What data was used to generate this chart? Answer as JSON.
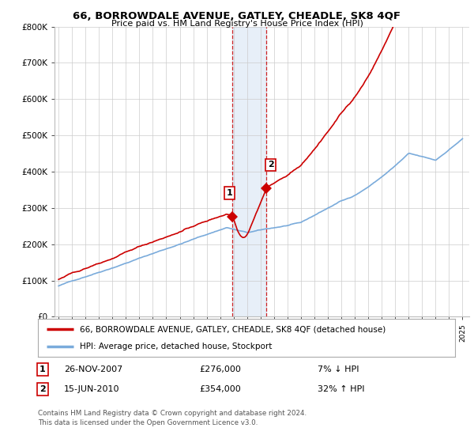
{
  "title": "66, BORROWDALE AVENUE, GATLEY, CHEADLE, SK8 4QF",
  "subtitle": "Price paid vs. HM Land Registry's House Price Index (HPI)",
  "ylim": [
    0,
    800000
  ],
  "yticks": [
    0,
    100000,
    200000,
    300000,
    400000,
    500000,
    600000,
    700000,
    800000
  ],
  "ytick_labels": [
    "£0",
    "£100K",
    "£200K",
    "£300K",
    "£400K",
    "£500K",
    "£600K",
    "£700K",
    "£800K"
  ],
  "sale1_year": 2007.9,
  "sale1_price": 276000,
  "sale2_year": 2010.45,
  "sale2_price": 354000,
  "property_color": "#cc0000",
  "hpi_color": "#7aabdb",
  "background_color": "#ffffff",
  "grid_color": "#cccccc",
  "legend_property": "66, BORROWDALE AVENUE, GATLEY, CHEADLE, SK8 4QF (detached house)",
  "legend_hpi": "HPI: Average price, detached house, Stockport",
  "table_row1": [
    "1",
    "26-NOV-2007",
    "£276,000",
    "7% ↓ HPI"
  ],
  "table_row2": [
    "2",
    "15-JUN-2010",
    "£354,000",
    "32% ↑ HPI"
  ],
  "footnote": "Contains HM Land Registry data © Crown copyright and database right 2024.\nThis data is licensed under the Open Government Licence v3.0."
}
